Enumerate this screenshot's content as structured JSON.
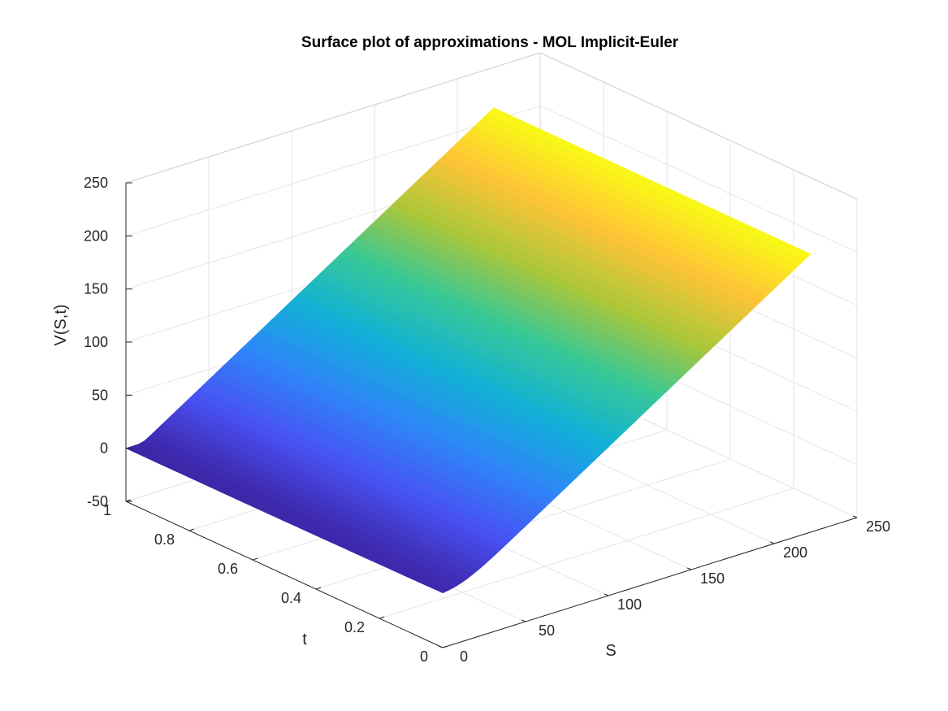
{
  "chart_data": {
    "type": "surface",
    "title": "Surface plot of approximations - MOL Implicit-Euler",
    "xlabel": "S",
    "ylabel": "t",
    "zlabel": "V(S,t)",
    "xlim": [
      0,
      250
    ],
    "ylim": [
      0,
      1
    ],
    "zlim": [
      -50,
      250
    ],
    "xticks": [
      "0",
      "50",
      "100",
      "150",
      "200",
      "250"
    ],
    "yticks": [
      "0",
      "0.2",
      "0.4",
      "0.6",
      "0.8",
      "1"
    ],
    "zticks": [
      "-50",
      "0",
      "50",
      "100",
      "150",
      "200",
      "250"
    ],
    "grid": true,
    "colormap": "parula",
    "strike": 10,
    "S_max": 222,
    "corner_values": [
      {
        "S": 0,
        "t": 0,
        "V": 0
      },
      {
        "S": 0,
        "t": 1,
        "V": 0
      },
      {
        "S": 222,
        "t": 0,
        "V": 212
      },
      {
        "S": 222,
        "t": 1,
        "V": 212
      }
    ]
  }
}
